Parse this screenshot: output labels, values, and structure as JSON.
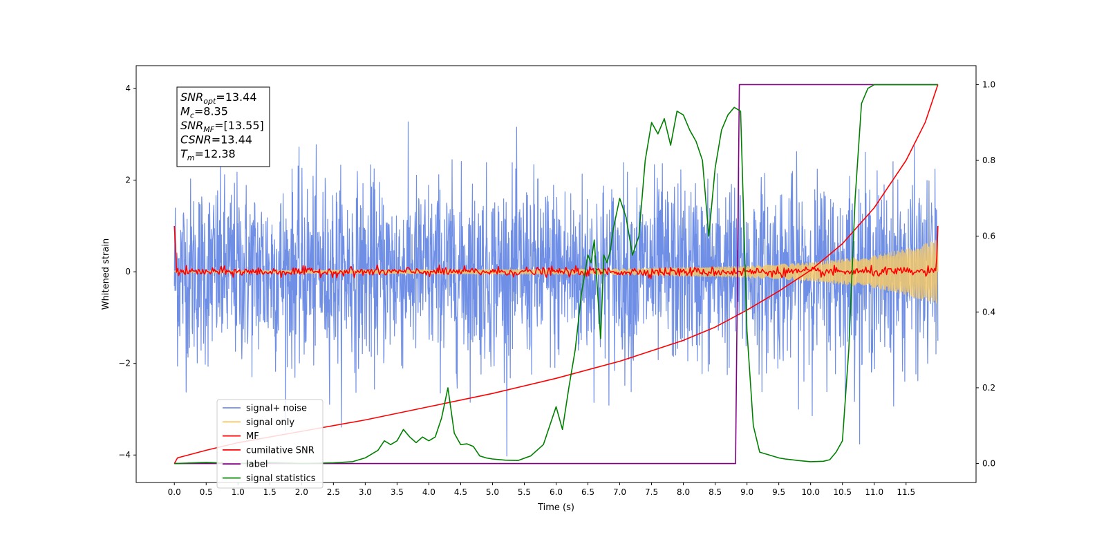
{
  "chart_data": {
    "type": "line",
    "xlabel": "Time (s)",
    "ylabel": "Whitened strain",
    "ylabel_right": "",
    "xlim": [
      -0.6,
      12.6
    ],
    "ylim": [
      -4.6,
      4.5
    ],
    "ylim_right": [
      -0.05,
      1.05
    ],
    "x_ticks": [
      0.0,
      0.5,
      1.0,
      1.5,
      2.0,
      2.5,
      3.0,
      3.5,
      4.0,
      4.5,
      5.0,
      5.5,
      6.0,
      6.5,
      7.0,
      7.5,
      8.0,
      8.5,
      9.0,
      9.5,
      10.0,
      10.5,
      11.0,
      11.5
    ],
    "x_tick_labels": [
      "0.0",
      "0.5",
      "1.0",
      "1.5",
      "2.0",
      "2.5",
      "3.0",
      "3.5",
      "4.0",
      "4.5",
      "5.0",
      "5.5",
      "6.0",
      "6.5",
      "7.0",
      "7.5",
      "8.0",
      "8.5",
      "9.0",
      "9.5",
      "10.0",
      "10.5",
      "11.0",
      "11.5"
    ],
    "y_ticks": [
      -4,
      -2,
      0,
      2,
      4
    ],
    "y_tick_labels": [
      "−4",
      "−2",
      "0",
      "2",
      "4"
    ],
    "y_ticks_right": [
      0.0,
      0.2,
      0.4,
      0.6,
      0.8,
      1.0
    ],
    "y_tick_labels_right": [
      "0.0",
      "0.2",
      "0.4",
      "0.6",
      "0.8",
      "1.0"
    ],
    "grid": false,
    "legend_position": "lower-left",
    "series": [
      {
        "name": "signal+ noise",
        "axis": "left",
        "color": "#6f8ee6",
        "kind": "noise",
        "x_range": [
          0.0,
          12.0
        ],
        "amplitude_std": 1.0
      },
      {
        "name": "signal only",
        "axis": "left",
        "color": "#f5c96a",
        "kind": "chirp",
        "x_range": [
          0.0,
          12.0
        ],
        "envelope": [
          [
            0.0,
            0.02
          ],
          [
            4.0,
            0.04
          ],
          [
            7.0,
            0.06
          ],
          [
            9.0,
            0.12
          ],
          [
            10.0,
            0.2
          ],
          [
            11.0,
            0.35
          ],
          [
            11.5,
            0.5
          ],
          [
            12.0,
            0.7
          ]
        ]
      },
      {
        "name": "MF",
        "axis": "left",
        "color": "#ff0000",
        "kind": "mf",
        "x_range": [
          0.0,
          12.0
        ],
        "start": 1.0,
        "end": 1.0,
        "jitter": 0.05
      },
      {
        "name": "cumilative SNR",
        "axis": "right",
        "color": "#ff0000",
        "x": [
          0.0,
          0.05,
          0.5,
          1.0,
          2.0,
          3.0,
          4.0,
          5.0,
          6.0,
          7.0,
          8.0,
          8.5,
          9.0,
          9.5,
          10.0,
          10.5,
          11.0,
          11.5,
          11.8,
          12.0
        ],
        "y": [
          0.0,
          0.015,
          0.035,
          0.055,
          0.085,
          0.115,
          0.15,
          0.185,
          0.225,
          0.27,
          0.325,
          0.36,
          0.405,
          0.455,
          0.51,
          0.58,
          0.675,
          0.8,
          0.9,
          1.0
        ]
      },
      {
        "name": "label",
        "axis": "right",
        "color": "#800080",
        "x": [
          0.0,
          8.82,
          8.88,
          12.0
        ],
        "y": [
          0.0,
          0.0,
          1.0,
          1.0
        ]
      },
      {
        "name": "signal statistics",
        "axis": "right",
        "color": "#008000",
        "x": [
          0.0,
          0.5,
          1.0,
          1.5,
          2.0,
          2.5,
          2.8,
          3.0,
          3.2,
          3.3,
          3.4,
          3.5,
          3.6,
          3.7,
          3.8,
          3.9,
          4.0,
          4.1,
          4.2,
          4.3,
          4.4,
          4.5,
          4.6,
          4.7,
          4.8,
          4.9,
          5.0,
          5.2,
          5.4,
          5.6,
          5.8,
          6.0,
          6.1,
          6.2,
          6.3,
          6.4,
          6.5,
          6.55,
          6.6,
          6.7,
          6.75,
          6.8,
          6.85,
          6.9,
          7.0,
          7.1,
          7.2,
          7.3,
          7.4,
          7.5,
          7.6,
          7.7,
          7.8,
          7.9,
          8.0,
          8.1,
          8.2,
          8.3,
          8.4,
          8.5,
          8.6,
          8.7,
          8.8,
          8.9,
          9.0,
          9.1,
          9.2,
          9.3,
          9.4,
          9.5,
          9.6,
          9.8,
          10.0,
          10.2,
          10.3,
          10.4,
          10.5,
          10.6,
          10.7,
          10.8,
          10.9,
          11.0,
          11.5,
          12.0
        ],
        "y": [
          0.0,
          0.003,
          0.0,
          0.003,
          0.0,
          0.002,
          0.005,
          0.015,
          0.035,
          0.06,
          0.05,
          0.06,
          0.09,
          0.07,
          0.055,
          0.07,
          0.06,
          0.07,
          0.12,
          0.2,
          0.08,
          0.05,
          0.052,
          0.045,
          0.02,
          0.015,
          0.012,
          0.009,
          0.008,
          0.02,
          0.05,
          0.15,
          0.09,
          0.2,
          0.3,
          0.45,
          0.55,
          0.53,
          0.59,
          0.33,
          0.55,
          0.53,
          0.56,
          0.62,
          0.7,
          0.65,
          0.55,
          0.6,
          0.8,
          0.9,
          0.87,
          0.91,
          0.84,
          0.93,
          0.92,
          0.88,
          0.85,
          0.8,
          0.6,
          0.78,
          0.88,
          0.92,
          0.94,
          0.93,
          0.35,
          0.1,
          0.03,
          0.025,
          0.02,
          0.015,
          0.012,
          0.008,
          0.005,
          0.006,
          0.01,
          0.03,
          0.06,
          0.3,
          0.7,
          0.95,
          0.99,
          1.0,
          1.0,
          1.0
        ]
      }
    ],
    "legend": [
      {
        "label": "signal+ noise",
        "color": "#6f8ee6"
      },
      {
        "label": "signal only",
        "color": "#f5c96a"
      },
      {
        "label": "MF",
        "color": "#ff0000"
      },
      {
        "label": "cumilative SNR",
        "color": "#ff0000"
      },
      {
        "label": "label",
        "color": "#800080"
      },
      {
        "label": "signal statistics",
        "color": "#008000"
      }
    ],
    "annotation_box": [
      {
        "var": "SNR",
        "sub": "opt",
        "value": "=13.44"
      },
      {
        "var": "M",
        "sub": "c",
        "value": "=8.35"
      },
      {
        "var": "SNR",
        "sub": "MF",
        "value": "=[13.55]"
      },
      {
        "var": "CSNR",
        "sub": "",
        "value": "=13.44"
      },
      {
        "var": "T",
        "sub": "m",
        "value": "=12.38"
      }
    ]
  }
}
